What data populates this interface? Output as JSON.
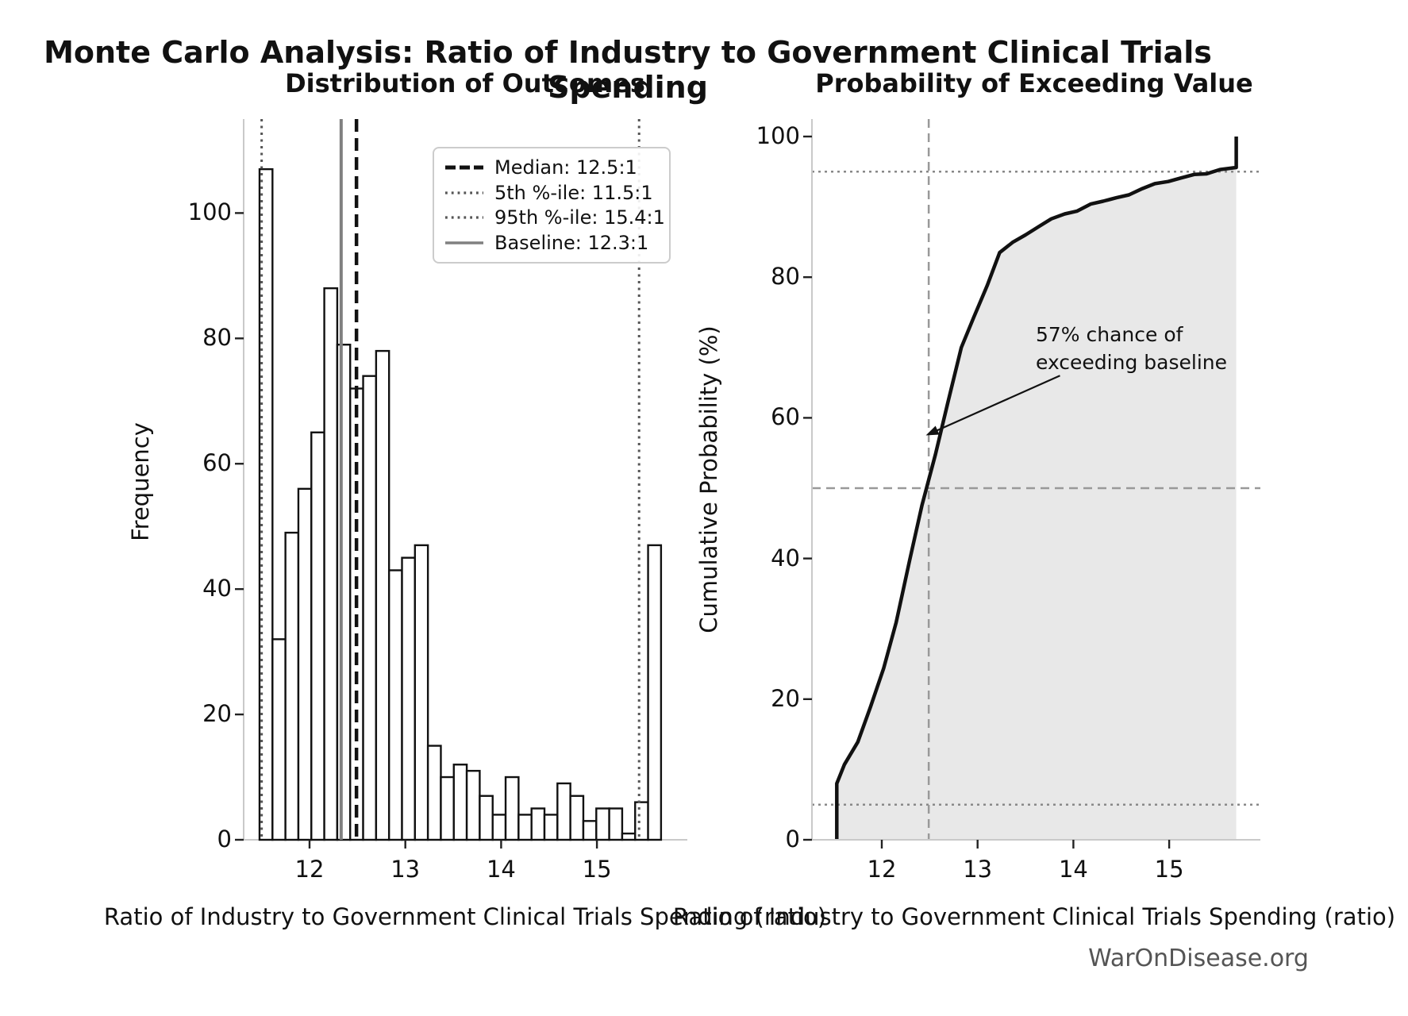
{
  "figure": {
    "suptitle": "Monte Carlo Analysis: Ratio of Industry to Government Clinical Trials Spending",
    "watermark": "WarOnDisease.org"
  },
  "colors": {
    "bar_fill": "#ffffff",
    "bar_edge": "#111111",
    "median_line": "#111111",
    "percentile_line": "#555555",
    "baseline_line": "#808080",
    "cdf_curve": "#111111",
    "cdf_fill": "#e8e8e8",
    "crosshair_dashed": "#999999",
    "crosshair_dotted": "#888888",
    "spine": "#c9c9c9",
    "tick": "#222222",
    "watermark": "#555555"
  },
  "chart_data": [
    {
      "type": "bar",
      "subtype": "histogram",
      "title": "Distribution of Outcomes",
      "xlabel": "Ratio of Industry to Government Clinical Trials Spending (ratio)",
      "ylabel": "Frequency",
      "bin_start": 11.478,
      "bin_width": 0.1352,
      "values": [
        107,
        32,
        49,
        56,
        65,
        88,
        79,
        72,
        74,
        78,
        43,
        45,
        47,
        15,
        10,
        12,
        11,
        7,
        4,
        10,
        4,
        5,
        4,
        9,
        7,
        3,
        5,
        5,
        1,
        6,
        47
      ],
      "xticks": [
        12,
        13,
        14,
        15
      ],
      "yticks": [
        0,
        20,
        40,
        60,
        80,
        100
      ],
      "xlim": [
        11.3,
        15.94
      ],
      "ylim": [
        0,
        115
      ],
      "grid": false,
      "ref_lines": {
        "median": 12.49,
        "p5": 11.5,
        "p95": 15.44,
        "baseline": 12.33
      },
      "legend_position": "upper right",
      "legend": [
        {
          "label": "Median: 12.5:1",
          "style": "dashed-black"
        },
        {
          "label": "5th %-ile: 11.5:1",
          "style": "dotted-gray"
        },
        {
          "label": "95th %-ile: 15.4:1",
          "style": "dotted-gray"
        },
        {
          "label": "Baseline: 12.3:1",
          "style": "solid-gray"
        }
      ]
    },
    {
      "type": "line",
      "subtype": "empirical-cdf",
      "title": "Probability of Exceeding Value",
      "xlabel": "Ratio of Industry to Government Clinical Trials Spending (ratio)",
      "ylabel": "Cumulative Probability (%)",
      "x": [
        11.53,
        11.53,
        11.61,
        11.75,
        11.88,
        12.02,
        12.15,
        12.29,
        12.42,
        12.56,
        12.69,
        12.83,
        12.96,
        13.1,
        13.23,
        13.37,
        13.5,
        13.64,
        13.77,
        13.91,
        14.04,
        14.18,
        14.31,
        14.45,
        14.58,
        14.72,
        14.85,
        14.99,
        15.12,
        15.26,
        15.39,
        15.53,
        15.7,
        15.7
      ],
      "y": [
        0,
        8,
        10.7,
        13.9,
        18.8,
        24.4,
        30.9,
        39.7,
        47.6,
        54.8,
        62.2,
        70.0,
        74.3,
        78.8,
        83.5,
        85.0,
        86.0,
        87.2,
        88.3,
        89.0,
        89.4,
        90.4,
        90.8,
        91.3,
        91.7,
        92.6,
        93.3,
        93.6,
        94.1,
        94.6,
        94.7,
        95.3,
        95.6,
        100
      ],
      "xticks": [
        12,
        13,
        14,
        15
      ],
      "yticks": [
        0,
        20,
        40,
        60,
        80,
        100
      ],
      "xlim": [
        11.3,
        15.94
      ],
      "ylim": [
        0,
        102
      ],
      "grid": false,
      "fill_under": true,
      "crosshair": {
        "v_dashed": 12.49,
        "h_dashed": 50,
        "h_dotted": [
          5,
          95
        ]
      },
      "annotation": {
        "text": "57% chance of\nexceeding baseline",
        "arrow_from": [
          13.86,
          66
        ],
        "arrow_to": [
          12.46,
          57.5
        ]
      }
    }
  ]
}
